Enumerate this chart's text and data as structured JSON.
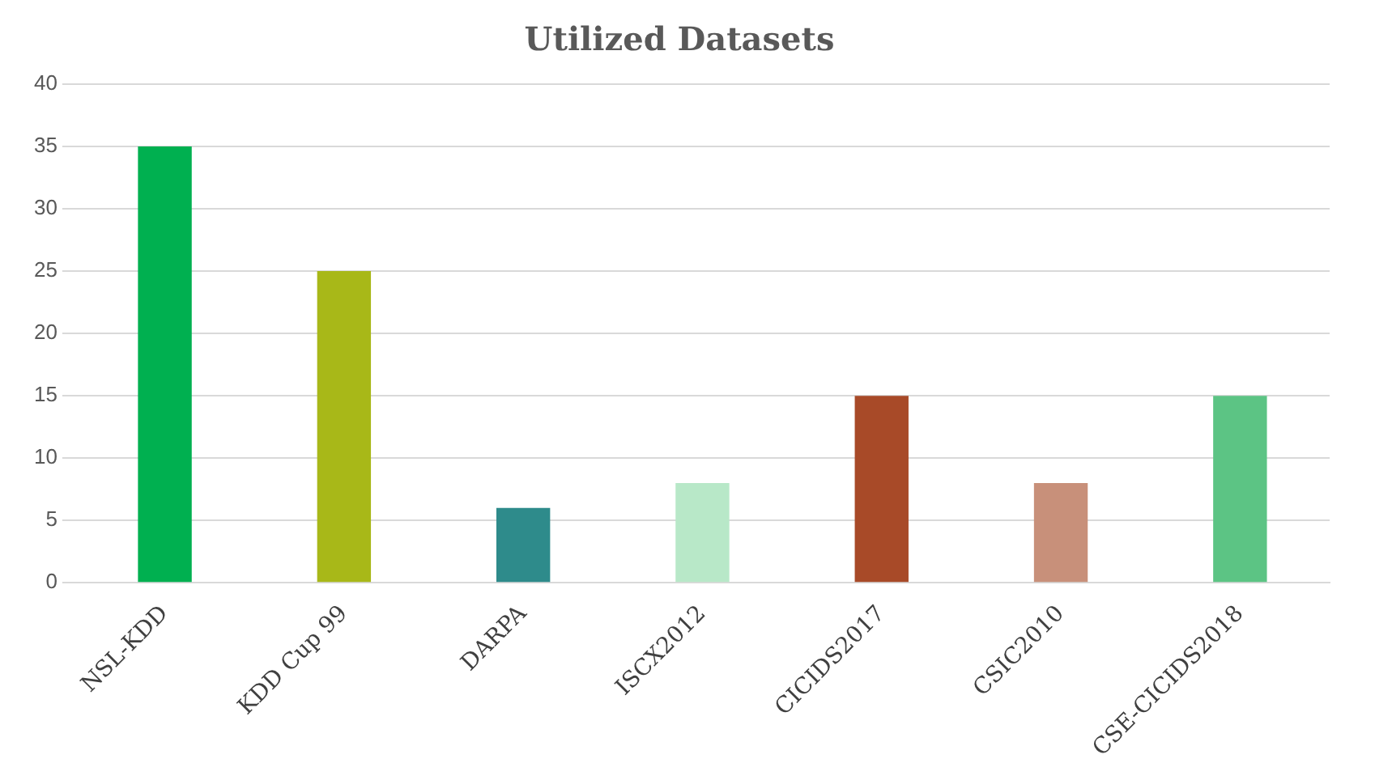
{
  "chart_data": {
    "type": "bar",
    "title": "Utilized Datasets",
    "categories": [
      "NSL-KDD",
      "KDD Cup 99",
      "DARPA",
      "ISCX2012",
      "CICIDS2017",
      "CSIC2010",
      "CSE-CICIDS2018"
    ],
    "values": [
      35,
      25,
      6,
      8,
      15,
      8,
      15
    ],
    "colors": [
      "#00b050",
      "#a8b818",
      "#2e8b8b",
      "#b8e8c8",
      "#a84a28",
      "#c8907a",
      "#5cc484"
    ],
    "ylim": [
      0,
      40
    ],
    "yticks": [
      0,
      5,
      10,
      15,
      20,
      25,
      30,
      35,
      40
    ],
    "grid": "y",
    "legend": false
  }
}
